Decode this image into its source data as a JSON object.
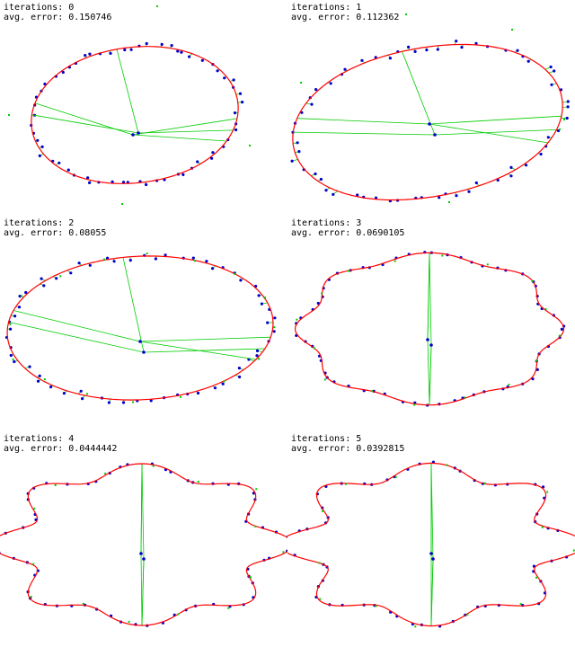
{
  "panels": [
    {
      "iterations_label": "iterations: 0",
      "error_label": "avg. error: 0.150746"
    },
    {
      "iterations_label": "iterations: 1",
      "error_label": "avg. error: 0.112362"
    },
    {
      "iterations_label": "iterations: 2",
      "error_label": "avg. error: 0.08055"
    },
    {
      "iterations_label": "iterations: 3",
      "error_label": "avg. error: 0.0690105"
    },
    {
      "iterations_label": "iterations: 4",
      "error_label": "avg. error: 0.0444442"
    },
    {
      "iterations_label": "iterations: 5",
      "error_label": "avg. error: 0.0392815"
    }
  ],
  "colors": {
    "curve": "#ff0000",
    "residual_line": "#00cc00",
    "sample_point": "#0000cc",
    "control_point": "#00cc00"
  }
}
